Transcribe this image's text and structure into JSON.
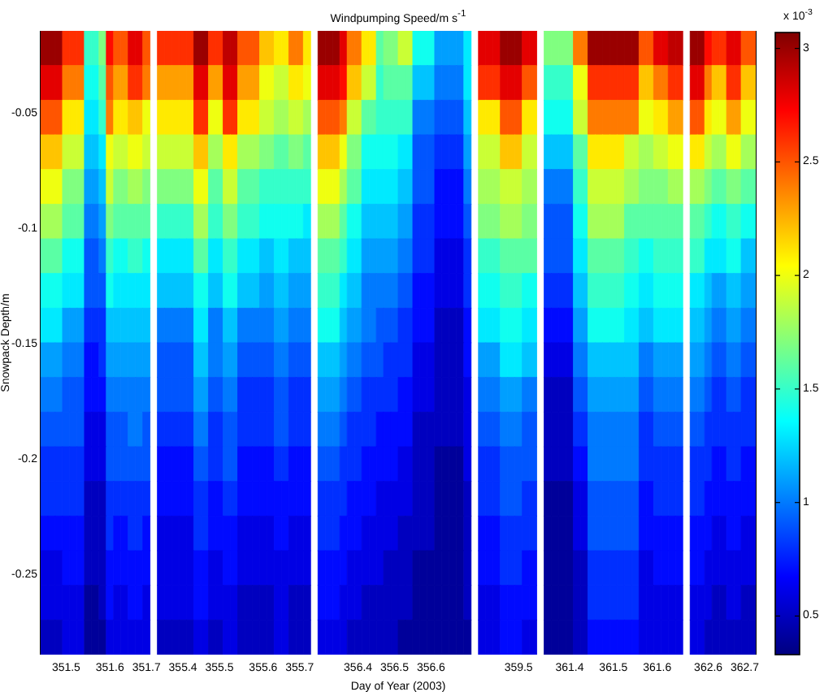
{
  "chart_data": {
    "type": "heatmap",
    "title": "Windpumping Speed/m s$^{-1}$",
    "xlabel": "Day of Year (2003)",
    "ylabel": "Snowpack Depth/m",
    "clabel": "x 10$^{-3}$",
    "categories": [
      null,
      null,
      null,
      "351.5",
      null,
      null,
      null,
      null,
      null,
      "351.6",
      null,
      null,
      null,
      null,
      "351.7",
      null,
      null,
      null,
      null,
      "355.4",
      null,
      null,
      null,
      null,
      "355.5",
      null,
      null,
      null,
      null,
      null,
      "355.6",
      null,
      null,
      null,
      null,
      "355.7",
      null,
      null,
      null,
      null,
      null,
      null,
      null,
      "356.4",
      null,
      null,
      null,
      null,
      "356.5",
      null,
      null,
      null,
      null,
      "356.6",
      null,
      null,
      null,
      null,
      null,
      null,
      null,
      null,
      null,
      null,
      null,
      "359.5",
      null,
      null,
      null,
      null,
      null,
      null,
      "361.4",
      null,
      null,
      null,
      null,
      null,
      "361.5",
      null,
      null,
      null,
      null,
      null,
      "361.6",
      null,
      null,
      null,
      null,
      null,
      null,
      "362.6",
      null,
      null,
      null,
      null,
      "362.7",
      null
    ],
    "ylim": [
      -0.285,
      -0.015
    ],
    "yticks": [
      -0.25,
      -0.2,
      -0.15,
      -0.1,
      -0.05
    ],
    "clim": [
      0.33,
      3.07
    ],
    "cticks": [
      0.5,
      1,
      1.5,
      2,
      2.5,
      3
    ],
    "cells": [
      [
        3.0,
        3.0,
        3.0,
        2.6,
        2.6,
        2.6,
        1.5,
        1.5,
        1.7,
        2.7,
        2.5,
        2.5,
        2.8,
        2.8,
        2.5,
        null,
        2.6,
        2.6,
        2.6,
        2.6,
        2.6,
        3.0,
        3.0,
        2.6,
        2.6,
        2.9,
        2.9,
        2.5,
        2.5,
        2.5,
        2.2,
        2.2,
        2.1,
        2.1,
        2.4,
        2.4,
        2.1,
        null,
        3.0,
        3.0,
        3.0,
        2.8,
        2.4,
        2.4,
        2.1,
        2.1,
        1.6,
        1.7,
        1.7,
        1.9,
        1.9,
        1.4,
        1.4,
        1.4,
        1.1,
        1.1,
        1.1,
        1.1,
        1.3,
        null,
        2.8,
        2.8,
        2.8,
        3.0,
        3.0,
        3.0,
        2.8,
        2.8,
        null,
        1.7,
        1.7,
        1.7,
        1.7,
        2.4,
        2.4,
        3.0,
        3.0,
        3.0,
        3.0,
        3.0,
        3.0,
        3.0,
        2.5,
        2.5,
        2.8,
        2.8,
        2.9,
        2.9,
        null,
        3.0,
        3.0,
        2.7,
        2.6,
        2.6,
        2.8,
        2.8,
        2.5,
        2.5
      ],
      [
        2.8,
        2.8,
        2.8,
        2.4,
        2.4,
        2.4,
        1.4,
        1.4,
        1.6,
        2.5,
        2.3,
        2.3,
        2.6,
        2.6,
        2.4,
        null,
        2.3,
        2.3,
        2.3,
        2.3,
        2.3,
        2.8,
        2.8,
        2.3,
        2.3,
        2.8,
        2.8,
        2.3,
        2.3,
        2.3,
        2.0,
        2.0,
        1.9,
        1.9,
        2.1,
        2.1,
        2.0,
        null,
        2.8,
        2.8,
        2.8,
        2.7,
        2.2,
        2.2,
        1.9,
        1.9,
        1.5,
        1.6,
        1.6,
        1.6,
        1.6,
        1.2,
        1.2,
        1.2,
        1.0,
        1.0,
        1.0,
        1.0,
        1.3,
        null,
        2.6,
        2.6,
        2.6,
        2.8,
        2.8,
        2.8,
        2.5,
        2.5,
        null,
        1.5,
        1.5,
        1.5,
        1.5,
        2.0,
        2.0,
        2.6,
        2.6,
        2.6,
        2.6,
        2.6,
        2.6,
        2.6,
        2.2,
        2.2,
        2.4,
        2.4,
        2.6,
        2.6,
        null,
        2.8,
        2.8,
        2.4,
        2.2,
        2.2,
        2.6,
        2.6,
        2.2,
        2.2
      ],
      [
        2.5,
        2.5,
        2.5,
        2.1,
        2.1,
        2.1,
        1.3,
        1.3,
        1.5,
        2.4,
        2.1,
        2.1,
        2.2,
        2.2,
        2.0,
        null,
        2.1,
        2.1,
        2.1,
        2.1,
        2.1,
        2.6,
        2.6,
        2.0,
        2.0,
        2.6,
        2.6,
        2.1,
        2.1,
        2.1,
        1.9,
        1.9,
        1.8,
        1.8,
        1.9,
        1.9,
        1.8,
        null,
        2.5,
        2.5,
        2.5,
        2.4,
        1.9,
        1.9,
        1.6,
        1.6,
        1.5,
        1.5,
        1.5,
        1.5,
        1.5,
        1.0,
        1.0,
        1.0,
        0.9,
        0.9,
        0.9,
        0.9,
        1.2,
        null,
        2.1,
        2.1,
        2.1,
        2.5,
        2.5,
        2.5,
        2.1,
        2.1,
        null,
        1.4,
        1.4,
        1.4,
        1.4,
        1.9,
        1.9,
        2.4,
        2.4,
        2.4,
        2.4,
        2.4,
        2.4,
        2.4,
        2.0,
        2.0,
        2.1,
        2.1,
        2.3,
        2.3,
        null,
        2.5,
        2.5,
        2.1,
        2.0,
        2.0,
        2.3,
        2.3,
        2.0,
        2.0
      ],
      [
        2.2,
        2.2,
        2.2,
        1.9,
        1.9,
        1.9,
        1.2,
        1.2,
        1.3,
        2.0,
        1.9,
        1.9,
        2.0,
        2.0,
        1.9,
        null,
        1.9,
        1.9,
        1.9,
        1.9,
        1.9,
        2.2,
        2.2,
        1.8,
        1.8,
        2.1,
        2.1,
        1.8,
        1.8,
        1.8,
        1.7,
        1.7,
        1.6,
        1.6,
        1.7,
        1.7,
        1.6,
        null,
        2.2,
        2.2,
        2.2,
        2.0,
        1.7,
        1.7,
        1.4,
        1.4,
        1.4,
        1.4,
        1.4,
        1.3,
        1.3,
        0.9,
        0.9,
        0.9,
        0.8,
        0.8,
        0.8,
        0.8,
        1.1,
        null,
        1.9,
        1.9,
        1.9,
        2.2,
        2.2,
        2.2,
        1.9,
        1.9,
        null,
        1.2,
        1.2,
        1.2,
        1.2,
        1.6,
        1.6,
        2.1,
        2.1,
        2.1,
        2.1,
        2.1,
        1.9,
        1.9,
        1.8,
        1.8,
        1.9,
        1.9,
        2.0,
        2.0,
        null,
        2.1,
        2.1,
        1.9,
        1.8,
        1.8,
        2.0,
        2.0,
        1.8,
        1.8
      ],
      [
        2.0,
        2.0,
        2.0,
        1.7,
        1.7,
        1.7,
        1.1,
        1.1,
        1.2,
        1.9,
        1.7,
        1.7,
        1.8,
        1.8,
        1.7,
        null,
        1.7,
        1.7,
        1.7,
        1.7,
        1.7,
        2.0,
        2.0,
        1.6,
        1.6,
        1.9,
        1.9,
        1.6,
        1.6,
        1.6,
        1.5,
        1.5,
        1.5,
        1.5,
        1.5,
        1.5,
        1.5,
        null,
        2.0,
        2.0,
        2.0,
        1.8,
        1.6,
        1.6,
        1.3,
        1.3,
        1.3,
        1.3,
        1.3,
        1.2,
        1.2,
        0.9,
        0.9,
        0.9,
        0.7,
        0.7,
        0.7,
        0.7,
        1.0,
        null,
        1.8,
        1.8,
        1.8,
        1.9,
        1.9,
        1.9,
        1.8,
        1.8,
        null,
        1.0,
        1.0,
        1.0,
        1.0,
        1.5,
        1.5,
        1.9,
        1.9,
        1.9,
        1.9,
        1.9,
        1.8,
        1.8,
        1.7,
        1.7,
        1.7,
        1.7,
        1.8,
        1.8,
        null,
        1.8,
        1.8,
        1.7,
        1.6,
        1.6,
        1.7,
        1.7,
        1.6,
        1.6
      ],
      [
        1.8,
        1.8,
        1.8,
        1.6,
        1.6,
        1.6,
        1.0,
        1.0,
        1.1,
        1.7,
        1.6,
        1.6,
        1.6,
        1.6,
        1.6,
        null,
        1.5,
        1.5,
        1.5,
        1.5,
        1.5,
        1.8,
        1.8,
        1.5,
        1.5,
        1.7,
        1.7,
        1.5,
        1.5,
        1.5,
        1.4,
        1.4,
        1.4,
        1.4,
        1.4,
        1.4,
        1.3,
        null,
        1.8,
        1.8,
        1.8,
        1.6,
        1.4,
        1.4,
        1.2,
        1.2,
        1.2,
        1.2,
        1.2,
        1.1,
        1.1,
        0.8,
        0.8,
        0.8,
        0.7,
        0.7,
        0.7,
        0.7,
        0.9,
        null,
        1.7,
        1.7,
        1.7,
        1.8,
        1.8,
        1.8,
        1.7,
        1.7,
        null,
        0.9,
        0.9,
        0.9,
        0.9,
        1.4,
        1.4,
        1.8,
        1.8,
        1.8,
        1.8,
        1.8,
        1.6,
        1.6,
        1.6,
        1.6,
        1.6,
        1.6,
        1.6,
        1.6,
        null,
        1.6,
        1.6,
        1.5,
        1.4,
        1.4,
        1.5,
        1.5,
        1.4,
        1.4
      ],
      [
        1.6,
        1.6,
        1.6,
        1.4,
        1.4,
        1.4,
        0.9,
        0.9,
        1.0,
        1.5,
        1.4,
        1.4,
        1.5,
        1.5,
        1.4,
        null,
        1.3,
        1.3,
        1.3,
        1.3,
        1.3,
        1.6,
        1.6,
        1.3,
        1.3,
        1.5,
        1.5,
        1.3,
        1.3,
        1.3,
        1.2,
        1.2,
        1.3,
        1.3,
        1.2,
        1.2,
        1.2,
        null,
        1.6,
        1.6,
        1.6,
        1.5,
        1.3,
        1.3,
        1.1,
        1.1,
        1.1,
        1.1,
        1.1,
        1.0,
        1.0,
        0.8,
        0.8,
        0.8,
        0.6,
        0.6,
        0.6,
        0.6,
        0.8,
        null,
        1.5,
        1.5,
        1.5,
        1.6,
        1.6,
        1.6,
        1.6,
        1.6,
        null,
        0.9,
        0.9,
        0.9,
        0.9,
        1.3,
        1.3,
        1.6,
        1.6,
        1.6,
        1.6,
        1.6,
        1.5,
        1.5,
        1.4,
        1.4,
        1.5,
        1.5,
        1.5,
        1.5,
        null,
        1.5,
        1.5,
        1.3,
        1.3,
        1.3,
        1.4,
        1.4,
        1.2,
        1.2
      ],
      [
        1.4,
        1.4,
        1.4,
        1.3,
        1.3,
        1.3,
        0.9,
        0.9,
        0.9,
        1.4,
        1.3,
        1.3,
        1.3,
        1.3,
        1.3,
        null,
        1.2,
        1.2,
        1.2,
        1.2,
        1.2,
        1.4,
        1.4,
        1.2,
        1.2,
        1.4,
        1.4,
        1.2,
        1.2,
        1.2,
        1.1,
        1.1,
        1.2,
        1.2,
        1.1,
        1.1,
        1.1,
        null,
        1.5,
        1.5,
        1.5,
        1.3,
        1.2,
        1.2,
        1.0,
        1.0,
        1.0,
        1.0,
        1.0,
        0.9,
        0.9,
        0.7,
        0.7,
        0.7,
        0.6,
        0.6,
        0.6,
        0.6,
        0.8,
        null,
        1.4,
        1.4,
        1.4,
        1.5,
        1.5,
        1.5,
        1.4,
        1.4,
        null,
        0.8,
        0.8,
        0.8,
        0.8,
        1.2,
        1.2,
        1.5,
        1.5,
        1.5,
        1.5,
        1.5,
        1.4,
        1.4,
        1.3,
        1.3,
        1.4,
        1.4,
        1.4,
        1.4,
        null,
        1.3,
        1.3,
        1.2,
        1.1,
        1.1,
        1.2,
        1.2,
        1.1,
        1.1
      ],
      [
        1.3,
        1.3,
        1.3,
        1.1,
        1.1,
        1.1,
        0.8,
        0.8,
        0.8,
        1.2,
        1.2,
        1.2,
        1.2,
        1.2,
        1.2,
        null,
        1.0,
        1.0,
        1.0,
        1.0,
        1.0,
        1.3,
        1.3,
        1.0,
        1.0,
        1.2,
        1.2,
        1.0,
        1.0,
        1.0,
        1.0,
        1.0,
        1.1,
        1.1,
        1.0,
        1.0,
        1.0,
        null,
        1.4,
        1.4,
        1.4,
        1.2,
        1.1,
        1.1,
        1.0,
        1.0,
        0.9,
        0.9,
        0.9,
        0.8,
        0.8,
        0.7,
        0.7,
        0.7,
        0.5,
        0.5,
        0.5,
        0.5,
        0.7,
        null,
        1.3,
        1.3,
        1.3,
        1.4,
        1.4,
        1.4,
        1.3,
        1.3,
        null,
        0.7,
        0.7,
        0.7,
        0.7,
        1.1,
        1.1,
        1.4,
        1.4,
        1.4,
        1.4,
        1.4,
        1.3,
        1.3,
        1.2,
        1.2,
        1.3,
        1.3,
        1.3,
        1.3,
        null,
        1.2,
        1.2,
        1.1,
        1.0,
        1.0,
        1.1,
        1.1,
        1.0,
        1.0
      ],
      [
        1.1,
        1.1,
        1.1,
        1.0,
        1.0,
        1.0,
        0.7,
        0.7,
        0.8,
        1.1,
        1.1,
        1.1,
        1.1,
        1.1,
        1.1,
        null,
        0.9,
        0.9,
        0.9,
        0.9,
        0.9,
        1.2,
        1.2,
        1.0,
        1.0,
        1.1,
        1.1,
        0.9,
        0.9,
        0.9,
        0.9,
        0.9,
        1.0,
        1.0,
        0.9,
        0.9,
        0.9,
        null,
        1.2,
        1.2,
        1.2,
        1.1,
        1.0,
        1.0,
        0.9,
        0.9,
        0.9,
        0.8,
        0.8,
        0.8,
        0.8,
        0.6,
        0.6,
        0.6,
        0.5,
        0.5,
        0.5,
        0.5,
        0.7,
        null,
        1.1,
        1.1,
        1.1,
        1.3,
        1.3,
        1.3,
        1.2,
        1.2,
        null,
        0.6,
        0.6,
        0.6,
        0.6,
        1.0,
        1.0,
        1.2,
        1.2,
        1.2,
        1.2,
        1.2,
        1.2,
        1.2,
        1.0,
        1.0,
        1.1,
        1.1,
        1.1,
        1.1,
        null,
        1.1,
        1.1,
        1.0,
        0.9,
        0.9,
        1.0,
        1.0,
        0.9,
        0.9
      ],
      [
        1.0,
        1.0,
        1.0,
        0.9,
        0.9,
        0.9,
        0.7,
        0.7,
        0.7,
        1.0,
        1.0,
        1.0,
        1.0,
        1.0,
        1.0,
        null,
        0.9,
        0.9,
        0.9,
        0.9,
        0.9,
        1.1,
        1.1,
        0.9,
        0.9,
        1.0,
        1.0,
        0.8,
        0.8,
        0.8,
        0.8,
        0.8,
        0.9,
        0.9,
        0.8,
        0.8,
        0.8,
        null,
        1.1,
        1.1,
        1.1,
        1.0,
        0.9,
        0.9,
        0.8,
        0.8,
        0.8,
        0.8,
        0.8,
        0.7,
        0.7,
        0.6,
        0.6,
        0.6,
        0.5,
        0.5,
        0.5,
        0.5,
        0.6,
        null,
        1.0,
        1.0,
        1.0,
        1.1,
        1.1,
        1.1,
        1.0,
        1.0,
        null,
        0.5,
        0.5,
        0.5,
        0.5,
        0.9,
        0.9,
        1.1,
        1.1,
        1.1,
        1.1,
        1.1,
        1.1,
        1.1,
        0.9,
        0.9,
        1.0,
        1.0,
        1.0,
        1.0,
        null,
        1.0,
        1.0,
        0.9,
        0.8,
        0.8,
        0.9,
        0.9,
        0.8,
        0.8
      ],
      [
        0.9,
        0.9,
        0.9,
        0.9,
        0.9,
        0.9,
        0.6,
        0.6,
        0.6,
        0.9,
        0.9,
        0.9,
        1.0,
        1.0,
        0.9,
        null,
        0.8,
        0.8,
        0.8,
        0.8,
        0.8,
        1.0,
        1.0,
        0.8,
        0.8,
        0.9,
        0.9,
        0.8,
        0.8,
        0.8,
        0.8,
        0.8,
        0.9,
        0.9,
        0.8,
        0.8,
        0.8,
        null,
        1.0,
        1.0,
        1.0,
        0.9,
        0.8,
        0.8,
        0.8,
        0.8,
        0.7,
        0.7,
        0.7,
        0.7,
        0.7,
        0.5,
        0.5,
        0.5,
        0.5,
        0.5,
        0.5,
        0.5,
        0.6,
        null,
        0.9,
        0.9,
        0.9,
        1.0,
        1.0,
        1.0,
        0.9,
        0.9,
        null,
        0.5,
        0.5,
        0.5,
        0.5,
        0.8,
        0.8,
        1.0,
        1.0,
        1.0,
        1.0,
        1.0,
        1.0,
        1.0,
        0.8,
        0.8,
        0.9,
        0.9,
        0.9,
        0.9,
        null,
        0.9,
        0.9,
        0.8,
        0.8,
        0.8,
        0.8,
        0.8,
        0.8,
        0.8
      ],
      [
        0.8,
        0.8,
        0.8,
        0.8,
        0.8,
        0.8,
        0.6,
        0.6,
        0.6,
        0.9,
        0.9,
        0.9,
        0.9,
        0.9,
        0.9,
        null,
        0.7,
        0.7,
        0.7,
        0.7,
        0.7,
        0.9,
        0.9,
        0.8,
        0.8,
        0.9,
        0.9,
        0.7,
        0.7,
        0.7,
        0.7,
        0.7,
        0.8,
        0.8,
        0.7,
        0.7,
        0.7,
        null,
        0.9,
        0.9,
        0.9,
        0.8,
        0.8,
        0.8,
        0.7,
        0.7,
        0.7,
        0.7,
        0.7,
        0.6,
        0.6,
        0.5,
        0.5,
        0.5,
        0.4,
        0.4,
        0.4,
        0.4,
        0.6,
        null,
        0.8,
        0.8,
        0.8,
        0.9,
        0.9,
        0.9,
        0.9,
        0.9,
        null,
        0.5,
        0.5,
        0.5,
        0.5,
        0.7,
        0.7,
        1.0,
        1.0,
        1.0,
        1.0,
        1.0,
        1.0,
        1.0,
        0.8,
        0.8,
        0.8,
        0.8,
        0.8,
        0.8,
        null,
        0.8,
        0.8,
        0.8,
        0.7,
        0.7,
        0.8,
        0.8,
        0.7,
        0.7
      ],
      [
        0.8,
        0.8,
        0.8,
        0.8,
        0.8,
        0.8,
        0.5,
        0.5,
        0.5,
        0.8,
        0.8,
        0.8,
        0.8,
        0.8,
        0.8,
        null,
        0.7,
        0.7,
        0.7,
        0.7,
        0.7,
        0.8,
        0.8,
        0.7,
        0.7,
        0.8,
        0.8,
        0.7,
        0.7,
        0.7,
        0.7,
        0.7,
        0.7,
        0.7,
        0.7,
        0.7,
        0.7,
        null,
        0.8,
        0.8,
        0.8,
        0.8,
        0.7,
        0.7,
        0.7,
        0.7,
        0.6,
        0.6,
        0.6,
        0.6,
        0.6,
        0.5,
        0.5,
        0.5,
        0.4,
        0.4,
        0.4,
        0.4,
        0.5,
        null,
        0.8,
        0.8,
        0.8,
        0.9,
        0.9,
        0.9,
        0.8,
        0.8,
        null,
        0.4,
        0.4,
        0.4,
        0.4,
        0.6,
        0.6,
        0.9,
        0.9,
        0.9,
        0.9,
        0.9,
        0.9,
        0.9,
        0.7,
        0.7,
        0.8,
        0.8,
        0.8,
        0.8,
        null,
        0.8,
        0.8,
        0.7,
        0.7,
        0.7,
        0.7,
        0.7,
        0.7,
        0.7
      ],
      [
        0.7,
        0.7,
        0.7,
        0.7,
        0.7,
        0.7,
        0.5,
        0.5,
        0.5,
        0.8,
        0.7,
        0.7,
        0.8,
        0.8,
        0.7,
        null,
        0.6,
        0.6,
        0.6,
        0.6,
        0.6,
        0.8,
        0.8,
        0.7,
        0.7,
        0.7,
        0.7,
        0.6,
        0.6,
        0.6,
        0.6,
        0.6,
        0.7,
        0.7,
        0.6,
        0.6,
        0.6,
        null,
        0.8,
        0.8,
        0.8,
        0.7,
        0.7,
        0.7,
        0.6,
        0.6,
        0.6,
        0.6,
        0.6,
        0.5,
        0.5,
        0.5,
        0.5,
        0.5,
        0.4,
        0.4,
        0.4,
        0.4,
        0.5,
        null,
        0.7,
        0.7,
        0.7,
        0.8,
        0.8,
        0.8,
        0.8,
        0.8,
        null,
        0.4,
        0.4,
        0.4,
        0.4,
        0.6,
        0.6,
        0.9,
        0.9,
        0.9,
        0.9,
        0.9,
        0.9,
        0.9,
        0.7,
        0.7,
        0.7,
        0.7,
        0.7,
        0.7,
        null,
        0.7,
        0.7,
        0.7,
        0.6,
        0.6,
        0.7,
        0.7,
        0.6,
        0.6
      ],
      [
        0.6,
        0.6,
        0.6,
        0.7,
        0.7,
        0.7,
        0.5,
        0.5,
        0.5,
        0.7,
        0.7,
        0.7,
        0.7,
        0.7,
        0.7,
        null,
        0.6,
        0.6,
        0.6,
        0.6,
        0.6,
        0.7,
        0.7,
        0.6,
        0.6,
        0.7,
        0.7,
        0.6,
        0.6,
        0.6,
        0.6,
        0.6,
        0.6,
        0.6,
        0.6,
        0.6,
        0.6,
        null,
        0.7,
        0.7,
        0.7,
        0.7,
        0.6,
        0.6,
        0.6,
        0.6,
        0.6,
        0.5,
        0.5,
        0.5,
        0.5,
        0.4,
        0.4,
        0.4,
        0.4,
        0.4,
        0.4,
        0.4,
        0.5,
        null,
        0.7,
        0.7,
        0.7,
        0.8,
        0.8,
        0.8,
        0.7,
        0.7,
        null,
        0.4,
        0.4,
        0.4,
        0.4,
        0.5,
        0.5,
        0.8,
        0.8,
        0.8,
        0.8,
        0.8,
        0.8,
        0.8,
        0.6,
        0.6,
        0.7,
        0.7,
        0.7,
        0.7,
        null,
        0.7,
        0.7,
        0.6,
        0.6,
        0.6,
        0.6,
        0.6,
        0.6,
        0.6
      ],
      [
        0.6,
        0.6,
        0.6,
        0.6,
        0.6,
        0.6,
        0.4,
        0.4,
        0.5,
        0.7,
        0.6,
        0.6,
        0.7,
        0.7,
        0.6,
        null,
        0.6,
        0.6,
        0.6,
        0.6,
        0.6,
        0.7,
        0.7,
        0.6,
        0.6,
        0.6,
        0.6,
        0.5,
        0.5,
        0.5,
        0.5,
        0.5,
        0.6,
        0.6,
        0.5,
        0.5,
        0.5,
        null,
        0.7,
        0.7,
        0.7,
        0.6,
        0.6,
        0.6,
        0.5,
        0.5,
        0.5,
        0.5,
        0.5,
        0.5,
        0.5,
        0.4,
        0.4,
        0.4,
        0.4,
        0.4,
        0.4,
        0.4,
        0.5,
        null,
        0.6,
        0.6,
        0.6,
        0.7,
        0.7,
        0.7,
        0.7,
        0.7,
        null,
        0.4,
        0.4,
        0.4,
        0.4,
        0.5,
        0.5,
        0.8,
        0.8,
        0.8,
        0.8,
        0.8,
        0.8,
        0.8,
        0.6,
        0.6,
        0.6,
        0.6,
        0.6,
        0.6,
        null,
        0.6,
        0.6,
        0.6,
        0.5,
        0.5,
        0.6,
        0.6,
        0.5,
        0.5
      ],
      [
        0.5,
        0.5,
        0.5,
        0.6,
        0.6,
        0.6,
        0.4,
        0.4,
        0.4,
        0.6,
        0.6,
        0.6,
        0.6,
        0.6,
        0.6,
        null,
        0.5,
        0.5,
        0.5,
        0.5,
        0.5,
        0.6,
        0.6,
        0.5,
        0.5,
        0.6,
        0.6,
        0.5,
        0.5,
        0.5,
        0.5,
        0.5,
        0.6,
        0.6,
        0.5,
        0.5,
        0.5,
        null,
        0.6,
        0.6,
        0.6,
        0.6,
        0.5,
        0.5,
        0.5,
        0.5,
        0.5,
        0.5,
        0.5,
        0.4,
        0.4,
        0.4,
        0.4,
        0.4,
        0.4,
        0.4,
        0.4,
        0.4,
        0.4,
        null,
        0.6,
        0.6,
        0.6,
        0.7,
        0.7,
        0.7,
        0.6,
        0.6,
        null,
        0.4,
        0.4,
        0.4,
        0.4,
        0.5,
        0.5,
        0.7,
        0.7,
        0.7,
        0.7,
        0.7,
        0.7,
        0.7,
        0.6,
        0.6,
        0.6,
        0.6,
        0.6,
        0.6,
        null,
        0.6,
        0.6,
        0.5,
        0.5,
        0.5,
        0.5,
        0.5,
        0.5,
        0.5
      ]
    ]
  }
}
